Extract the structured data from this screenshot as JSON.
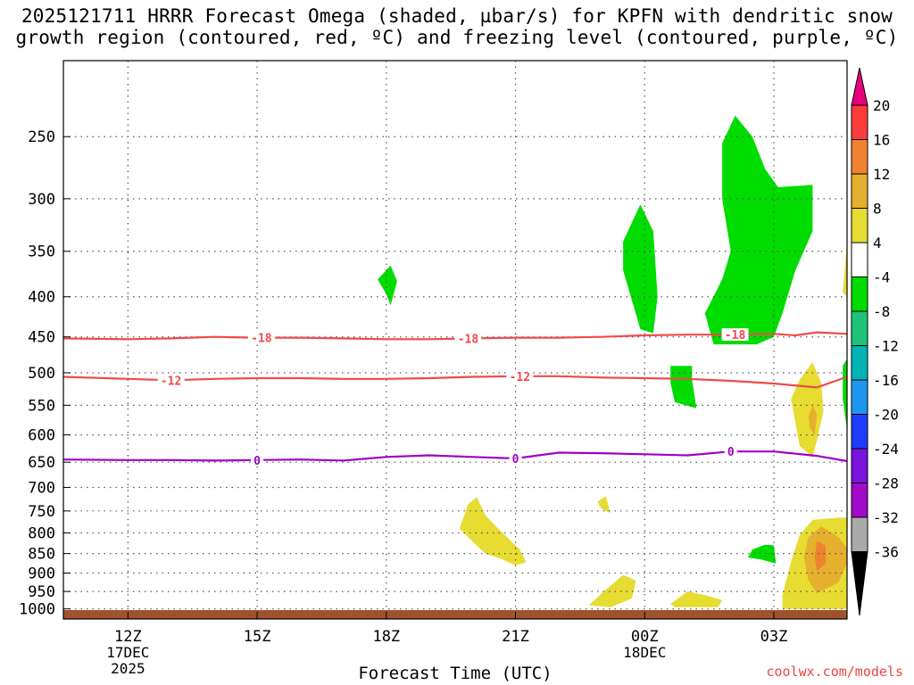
{
  "header": {
    "title_line1": "2025121711 HRRR Forecast Omega (shaded, µbar/s) for KPFN with dendritic snow",
    "title_line2": "growth region (contoured, red, ºC) and freezing level (contoured, purple, ºC)"
  },
  "footer": {
    "credit": "coolwx.com/models",
    "xlabel": "Forecast Time (UTC)"
  },
  "chart_data": {
    "type": "heatmap",
    "title": "2025121711 HRRR Forecast Omega (shaded, µbar/s) for KPFN with dendritic snow growth region (contoured, red, ºC) and freezing level (contoured, purple, ºC)",
    "xlabel": "Forecast Time (UTC)",
    "ylabel": "",
    "x_range_hours": [
      10.5,
      28.7
    ],
    "y_range_hpa": [
      1030,
      200
    ],
    "y_scale": "log",
    "grid": true,
    "x_ticks": [
      {
        "hour": 12,
        "label": "12Z",
        "sub1": "17DEC",
        "sub2": "2025"
      },
      {
        "hour": 15,
        "label": "15Z",
        "sub1": "",
        "sub2": ""
      },
      {
        "hour": 18,
        "label": "18Z",
        "sub1": "",
        "sub2": ""
      },
      {
        "hour": 21,
        "label": "21Z",
        "sub1": "",
        "sub2": ""
      },
      {
        "hour": 24,
        "label": "00Z",
        "sub1": "18DEC",
        "sub2": ""
      },
      {
        "hour": 27,
        "label": "03Z",
        "sub1": "",
        "sub2": ""
      }
    ],
    "y_ticks": [
      250,
      300,
      350,
      400,
      450,
      500,
      550,
      600,
      650,
      700,
      750,
      800,
      850,
      900,
      950,
      1000
    ],
    "colorbar": {
      "levels": [
        20,
        16,
        12,
        8,
        4,
        -4,
        -8,
        -12,
        -16,
        -20,
        -24,
        -28,
        -32,
        -36
      ],
      "colors": [
        "#ff3c3c",
        "#f08232",
        "#e6af2d",
        "#e6dc32",
        "#ffffff",
        "#00dc00",
        "#1ec47a",
        "#00b4b4",
        "#1e96f0",
        "#1e3cff",
        "#7814dc",
        "#a00ac8",
        "#aaaaaa"
      ],
      "top_arrow_color": "#e6007e",
      "bottom_arrow_color": "#000000"
    },
    "contours": [
      {
        "label": "-18",
        "color": "#f04a4a",
        "points": [
          [
            10.5,
            452
          ],
          [
            12,
            453
          ],
          [
            13,
            452
          ],
          [
            14,
            450
          ],
          [
            15,
            451
          ],
          [
            16,
            451
          ],
          [
            17,
            452
          ],
          [
            18,
            453
          ],
          [
            19,
            453
          ],
          [
            20,
            452
          ],
          [
            21,
            451
          ],
          [
            22,
            451
          ],
          [
            23,
            450
          ],
          [
            24,
            448
          ],
          [
            25,
            447
          ],
          [
            26,
            447
          ],
          [
            27,
            446
          ],
          [
            27.5,
            448
          ],
          [
            28,
            444
          ],
          [
            28.7,
            446
          ]
        ],
        "label_hours": [
          15.1,
          19.9,
          26.1
        ]
      },
      {
        "label": "-12",
        "color": "#f04a4a",
        "points": [
          [
            10.5,
            506
          ],
          [
            12,
            509
          ],
          [
            13,
            511
          ],
          [
            14,
            509
          ],
          [
            15,
            508
          ],
          [
            16,
            508
          ],
          [
            17,
            509
          ],
          [
            18,
            509
          ],
          [
            19,
            508
          ],
          [
            20,
            506
          ],
          [
            21,
            505
          ],
          [
            22,
            505
          ],
          [
            23,
            507
          ],
          [
            24,
            508
          ],
          [
            25,
            509
          ],
          [
            26,
            512
          ],
          [
            27,
            516
          ],
          [
            28,
            522
          ],
          [
            28.7,
            506
          ]
        ],
        "label_hours": [
          13.0,
          21.1
        ]
      },
      {
        "label": "0",
        "color": "#a000c8",
        "points": [
          [
            10.5,
            645
          ],
          [
            12,
            646
          ],
          [
            13,
            646
          ],
          [
            14,
            647
          ],
          [
            15,
            646
          ],
          [
            16,
            645
          ],
          [
            17,
            647
          ],
          [
            18,
            640
          ],
          [
            19,
            637
          ],
          [
            20,
            640
          ],
          [
            21,
            643
          ],
          [
            22,
            632
          ],
          [
            23,
            633
          ],
          [
            24,
            635
          ],
          [
            25,
            637
          ],
          [
            26,
            630
          ],
          [
            27,
            630
          ],
          [
            28,
            638
          ],
          [
            28.7,
            648
          ]
        ],
        "label_hours": [
          15.0,
          21.0,
          26.0
        ]
      }
    ],
    "regions": [
      {
        "value": 4,
        "color": "#e6dc32",
        "points": [
          [
            20.1,
            830
          ],
          [
            19.7,
            790
          ],
          [
            19.9,
            735
          ],
          [
            20.1,
            720
          ],
          [
            20.3,
            760
          ],
          [
            20.6,
            790
          ],
          [
            21.1,
            840
          ],
          [
            21.25,
            872
          ],
          [
            21.0,
            880
          ],
          [
            20.7,
            865
          ],
          [
            20.3,
            850
          ]
        ]
      },
      {
        "value": 4,
        "color": "#e6dc32",
        "points": [
          [
            22.7,
            990
          ],
          [
            23.1,
            945
          ],
          [
            23.5,
            905
          ],
          [
            23.8,
            920
          ],
          [
            23.7,
            970
          ],
          [
            23.2,
            995
          ]
        ]
      },
      {
        "value": 4,
        "color": "#e6dc32",
        "points": [
          [
            23.0,
            745
          ],
          [
            22.9,
            730
          ],
          [
            23.1,
            718
          ],
          [
            23.2,
            755
          ]
        ]
      },
      {
        "value": 4,
        "color": "#e6dc32",
        "points": [
          [
            24.6,
            985
          ],
          [
            25.0,
            950
          ],
          [
            25.4,
            960
          ],
          [
            25.8,
            975
          ],
          [
            25.7,
            995
          ],
          [
            24.7,
            995
          ]
        ]
      },
      {
        "value": 4,
        "color": "#e6dc32",
        "points": [
          [
            27.4,
            540
          ],
          [
            27.6,
            510
          ],
          [
            27.9,
            485
          ],
          [
            28.1,
            515
          ],
          [
            28.15,
            560
          ],
          [
            28.0,
            610
          ],
          [
            27.9,
            640
          ],
          [
            27.6,
            620
          ]
        ]
      },
      {
        "value": 4,
        "color": "#e6dc32",
        "points": [
          [
            28.7,
            340
          ],
          [
            28.6,
            395
          ],
          [
            28.8,
            405
          ],
          [
            28.8,
            330
          ]
        ]
      },
      {
        "value": 4,
        "color": "#e6dc32",
        "points": [
          [
            27.2,
            960
          ],
          [
            27.4,
            870
          ],
          [
            27.6,
            805
          ],
          [
            27.9,
            770
          ],
          [
            28.5,
            765
          ],
          [
            28.8,
            765
          ],
          [
            28.8,
            1000
          ],
          [
            27.2,
            1000
          ]
        ]
      },
      {
        "value": 8,
        "color": "#e6af2d",
        "points": [
          [
            27.7,
            860
          ],
          [
            27.8,
            810
          ],
          [
            28.1,
            785
          ],
          [
            28.5,
            810
          ],
          [
            28.8,
            850
          ],
          [
            28.5,
            925
          ],
          [
            28.0,
            955
          ],
          [
            27.8,
            920
          ]
        ]
      },
      {
        "value": 8,
        "color": "#e6af2d",
        "points": [
          [
            27.8,
            570
          ],
          [
            27.9,
            550
          ],
          [
            28.0,
            565
          ],
          [
            27.95,
            600
          ],
          [
            27.85,
            590
          ]
        ]
      },
      {
        "value": 12,
        "color": "#f08232",
        "points": [
          [
            27.95,
            860
          ],
          [
            28.0,
            820
          ],
          [
            28.2,
            830
          ],
          [
            28.2,
            875
          ],
          [
            28.0,
            895
          ]
        ]
      },
      {
        "value": -4,
        "color": "#00dc00",
        "points": [
          [
            18.0,
            397
          ],
          [
            17.8,
            380
          ],
          [
            18.1,
            365
          ],
          [
            18.25,
            382
          ],
          [
            18.1,
            410
          ]
        ]
      },
      {
        "value": -4,
        "color": "#00dc00",
        "points": [
          [
            23.5,
            370
          ],
          [
            23.5,
            340
          ],
          [
            23.9,
            305
          ],
          [
            24.2,
            330
          ],
          [
            24.3,
            400
          ],
          [
            24.2,
            445
          ],
          [
            23.9,
            440
          ]
        ]
      },
      {
        "value": -4,
        "color": "#00dc00",
        "points": [
          [
            24.6,
            490
          ],
          [
            25.1,
            490
          ],
          [
            25.1,
            510
          ],
          [
            25.2,
            555
          ],
          [
            24.7,
            545
          ],
          [
            24.6,
            515
          ]
        ]
      },
      {
        "value": -4,
        "color": "#00dc00",
        "points": [
          [
            25.4,
            420
          ],
          [
            25.8,
            380
          ],
          [
            26.0,
            350
          ],
          [
            25.8,
            300
          ],
          [
            25.8,
            255
          ],
          [
            26.1,
            235
          ],
          [
            26.5,
            250
          ],
          [
            26.8,
            275
          ],
          [
            27.1,
            290
          ],
          [
            27.1,
            290
          ],
          [
            27.9,
            288
          ],
          [
            27.9,
            330
          ],
          [
            27.5,
            370
          ],
          [
            27.2,
            420
          ],
          [
            27.0,
            450
          ],
          [
            26.6,
            460
          ],
          [
            25.6,
            460
          ]
        ]
      },
      {
        "value": -4,
        "color": "#00dc00",
        "points": [
          [
            26.4,
            860
          ],
          [
            26.5,
            840
          ],
          [
            26.8,
            828
          ],
          [
            27.0,
            830
          ],
          [
            27.05,
            875
          ],
          [
            26.7,
            865
          ]
        ]
      },
      {
        "value": -4,
        "color": "#00dc00",
        "points": [
          [
            28.6,
            490
          ],
          [
            28.8,
            470
          ],
          [
            28.8,
            650
          ],
          [
            28.7,
            590
          ],
          [
            28.6,
            540
          ]
        ]
      }
    ]
  }
}
